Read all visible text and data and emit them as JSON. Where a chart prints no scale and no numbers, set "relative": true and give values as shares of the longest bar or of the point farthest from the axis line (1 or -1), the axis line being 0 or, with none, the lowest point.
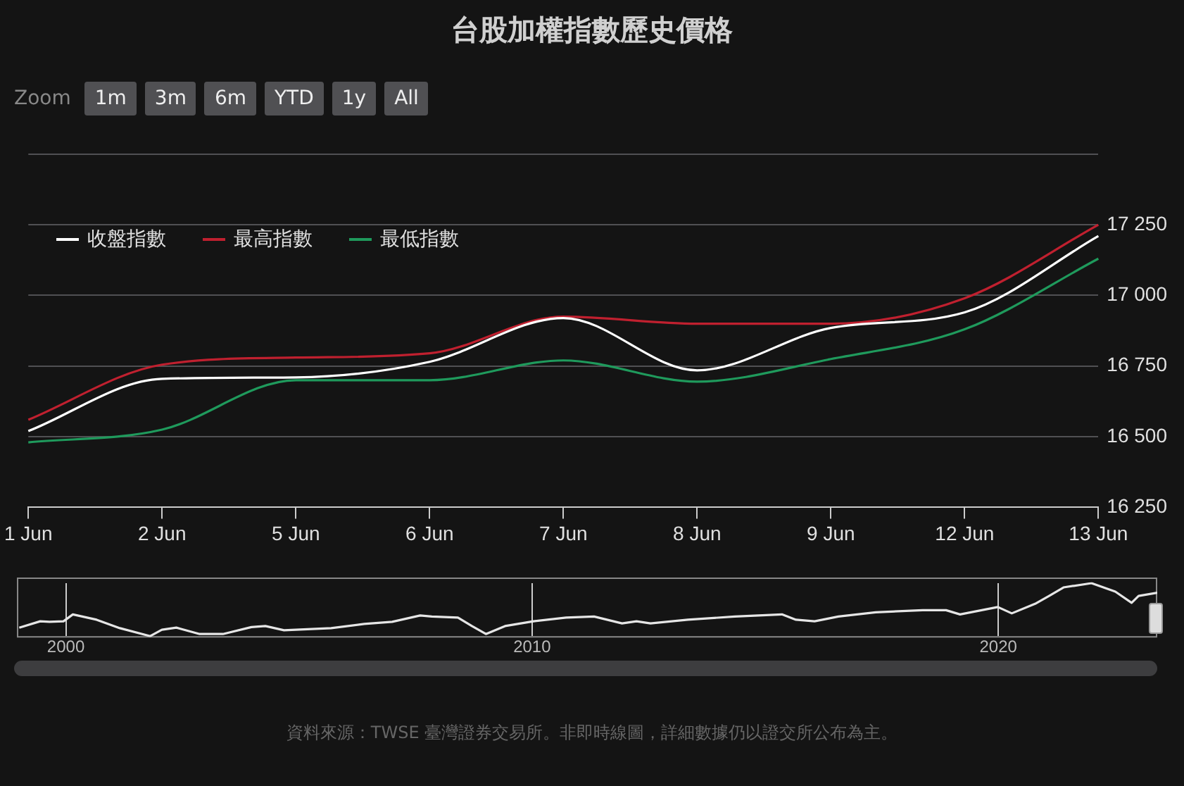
{
  "chart_data": [
    {
      "type": "line",
      "title": "台股加權指數歷史價格",
      "categories": [
        "1 Jun",
        "2 Jun",
        "5 Jun",
        "6 Jun",
        "7 Jun",
        "8 Jun",
        "9 Jun",
        "12 Jun",
        "13 Jun"
      ],
      "series": [
        {
          "name": "收盤指數",
          "color": "#ffffff",
          "values": [
            16520,
            16705,
            16710,
            16765,
            16920,
            16735,
            16885,
            16940,
            17210
          ]
        },
        {
          "name": "最高指數",
          "color": "#c0202f",
          "values": [
            16560,
            16755,
            16780,
            16795,
            16925,
            16900,
            16900,
            16990,
            17250
          ]
        },
        {
          "name": "最低指數",
          "color": "#1f9a5c",
          "values": [
            16480,
            16525,
            16700,
            16700,
            16770,
            16695,
            16775,
            16880,
            17130
          ]
        }
      ],
      "ylim": [
        16250,
        17500
      ],
      "yticks": [
        {
          "value": 16250,
          "label": "16 250"
        },
        {
          "value": 16500,
          "label": "16 500"
        },
        {
          "value": 16750,
          "label": "16 750"
        },
        {
          "value": 17000,
          "label": "17 000"
        },
        {
          "value": 17250,
          "label": "17 250"
        },
        {
          "value": 17500,
          "label": null
        }
      ],
      "grid": "y",
      "legend": "top left",
      "marker": "none",
      "line_style": "solid",
      "annotations": [
        "Zoom",
        "1m",
        "3m",
        "6m",
        "YTD",
        "1y",
        "All",
        "資料來源：TWSE 臺灣證券交易所。非即時線圖，詳細數據仍以證交所公布為主。"
      ]
    },
    {
      "type": "line",
      "relative": true,
      "x": [
        1999.0,
        1999.45,
        1999.65,
        1999.95,
        2000.15,
        2000.66,
        2001.16,
        2001.81,
        2002.06,
        2002.37,
        2002.87,
        2003.37,
        2003.98,
        2004.28,
        2004.68,
        2005.69,
        2006.4,
        2007.0,
        2007.6,
        2007.85,
        2008.41,
        2008.71,
        2009.01,
        2009.42,
        2010.03,
        2010.73,
        2011.33,
        2011.93,
        2012.24,
        2012.54,
        2013.34,
        2014.35,
        2015.36,
        2015.66,
        2016.06,
        2016.57,
        2017.37,
        2018.38,
        2018.88,
        2019.18,
        2019.99,
        2020.29,
        2020.79,
        2021.09,
        2021.4,
        2022.0,
        2022.51,
        2022.86,
        2023.01,
        2023.41
      ],
      "series": [
        {
          "color": "#e6e6e6",
          "values": [
            0.16,
            0.28,
            0.27,
            0.28,
            0.41,
            0.31,
            0.15,
            0,
            0.12,
            0.16,
            0.04,
            0.04,
            0.17,
            0.19,
            0.11,
            0.15,
            0.23,
            0.27,
            0.39,
            0.37,
            0.35,
            0.19,
            0.04,
            0.19,
            0.28,
            0.35,
            0.37,
            0.24,
            0.28,
            0.24,
            0.31,
            0.37,
            0.41,
            0.31,
            0.28,
            0.37,
            0.45,
            0.49,
            0.49,
            0.41,
            0.55,
            0.43,
            0.61,
            0.76,
            0.92,
            1,
            0.84,
            0.63,
            0.76,
            0.82
          ]
        }
      ],
      "xlim": [
        1998.95,
        2023.41
      ],
      "xticks": [
        2000,
        2010,
        2020
      ],
      "grid": "x",
      "marker": "none",
      "line_style": "solid"
    }
  ]
}
